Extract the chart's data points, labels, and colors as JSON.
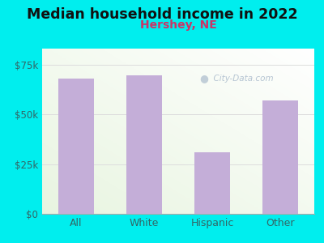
{
  "title": "Median household income in 2022",
  "subtitle": "Hershey, NE",
  "categories": [
    "All",
    "White",
    "Hispanic",
    "Other"
  ],
  "values": [
    68000,
    69500,
    31000,
    57000
  ],
  "bar_color": "#c4aed8",
  "background_color": "#00EEEE",
  "title_fontsize": 12.5,
  "subtitle_fontsize": 10,
  "subtitle_color": "#cc3366",
  "tick_label_color": "#336666",
  "ytick_labels": [
    "$0",
    "$25k",
    "$50k",
    "$75k"
  ],
  "ytick_values": [
    0,
    25000,
    50000,
    75000
  ],
  "ylim": [
    0,
    83000
  ],
  "watermark": "City-Data.com",
  "watermark_color": "#aabbcc",
  "grid_color": "#dddddd"
}
